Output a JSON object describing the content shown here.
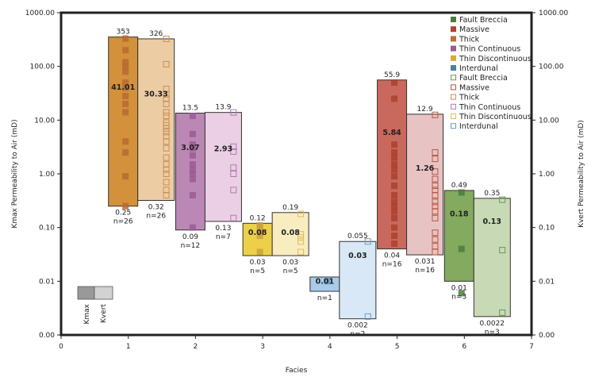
{
  "chart_data": {
    "type": "bar",
    "subtype": "floating-range-bar-log",
    "xlabel": "Facies",
    "ylabel_left": "Kmax Permeability to Air (mD)",
    "ylabel_right": "Kvert Permeability to Air (mD)",
    "x_ticks": [
      "0",
      "1",
      "2",
      "3",
      "4",
      "5",
      "6",
      "7"
    ],
    "xlim": [
      0,
      7
    ],
    "yscale": "log",
    "ylim": [
      0.001,
      1000
    ],
    "y_ticks": [
      {
        "value": 1000,
        "label": "1000.00"
      },
      {
        "value": 100,
        "label": "100.00"
      },
      {
        "value": 10,
        "label": "10.00"
      },
      {
        "value": 1,
        "label": "1.00"
      },
      {
        "value": 0.1,
        "label": "0.10"
      },
      {
        "value": 0.01,
        "label": "0.01"
      },
      {
        "value": 0.001,
        "label": "0.00"
      }
    ],
    "grid": false,
    "legend_position": "top-right",
    "legend": [
      {
        "label": "Fault Breccia",
        "style": "filled",
        "color": "#4e7d3a"
      },
      {
        "label": "Massive",
        "style": "filled",
        "color": "#a9432e"
      },
      {
        "label": "Thick",
        "style": "filled",
        "color": "#bd6f35"
      },
      {
        "label": "Thin Continuous",
        "style": "filled",
        "color": "#9a5b93"
      },
      {
        "label": "Thin Discontinuous",
        "style": "filled",
        "color": "#d6ab3a"
      },
      {
        "label": "Interdunal",
        "style": "filled",
        "color": "#4d7ea6"
      },
      {
        "label": "Fault Breccia",
        "style": "hollow",
        "color": "#6f9455"
      },
      {
        "label": "Massive",
        "style": "hollow",
        "color": "#b8563f"
      },
      {
        "label": "Thick",
        "style": "hollow",
        "color": "#c98c58"
      },
      {
        "label": "Thin Continuous",
        "style": "hollow",
        "color": "#b07bb0"
      },
      {
        "label": "Thin Discontinuous",
        "style": "hollow",
        "color": "#dcbf5e"
      },
      {
        "label": "Interdunal",
        "style": "hollow",
        "color": "#6f9cc4"
      }
    ],
    "key": {
      "kmax_label": "Kmax",
      "kvert_label": "Kvert",
      "kmax_color": "#999999",
      "kvert_color": "#d2d2d2"
    },
    "series": [
      {
        "facies": 1,
        "name": "Thick",
        "measure": "Kmax",
        "max": 353,
        "mean": 41.01,
        "min": 0.25,
        "n": 26,
        "max_label": "353",
        "mean_label": "41.01",
        "min_label": "0.25",
        "n_label": "n=26",
        "fill": "#d2913a",
        "marker": "#b86a33",
        "marker_style": "filled",
        "points": [
          330,
          200,
          120,
          100,
          80,
          50,
          40,
          28,
          20,
          14,
          4,
          2.5,
          0.9,
          0.25
        ]
      },
      {
        "facies": 1,
        "name": "Thick",
        "measure": "Kvert",
        "max": 326,
        "mean": 30.33,
        "min": 0.32,
        "n": 26,
        "max_label": "326",
        "mean_label": "30.33",
        "min_label": "0.32",
        "n_label": "n=26",
        "fill": "#eccda3",
        "marker": "#c98c58",
        "marker_style": "hollow",
        "points": [
          326,
          110,
          38,
          30,
          25,
          20,
          14,
          12,
          9,
          8,
          7,
          6,
          5,
          4,
          3,
          2,
          1.5,
          1.2,
          1.0,
          0.7,
          0.5,
          0.4
        ]
      },
      {
        "facies": 2,
        "name": "Thin Continuous",
        "measure": "Kmax",
        "max": 13.5,
        "mean": 3.07,
        "min": 0.09,
        "n": 12,
        "max_label": "13.5",
        "mean_label": "3.07",
        "min_label": "0.09",
        "n_label": "n=12",
        "fill": "#bb87b4",
        "marker": "#9a5b93",
        "marker_style": "filled",
        "points": [
          12,
          5.5,
          3.5,
          3,
          2.2,
          1.5,
          1.2,
          1,
          0.8,
          0.4,
          0.1
        ]
      },
      {
        "facies": 2,
        "name": "Thin Continuous",
        "measure": "Kvert",
        "max": 13.9,
        "mean": 2.93,
        "min": 0.13,
        "n": 7,
        "max_label": "13.9",
        "mean_label": "2.93",
        "min_label": "0.13",
        "n_label": "n=7",
        "fill": "#ebcfe4",
        "marker": "#b07bb0",
        "marker_style": "hollow",
        "points": [
          13.9,
          3.2,
          2.6,
          1.3,
          1.0,
          0.5,
          0.15
        ]
      },
      {
        "facies": 3,
        "name": "Thin Discontinuous",
        "measure": "Kmax",
        "max": 0.12,
        "mean": 0.08,
        "min": 0.03,
        "n": 5,
        "max_label": "0.12",
        "mean_label": "0.08",
        "min_label": "0.03",
        "n_label": "n=5",
        "fill": "#ecd04a",
        "marker": "#c9a040",
        "marker_style": "filled",
        "points": [
          0.11,
          0.1,
          0.08,
          0.07,
          0.035
        ]
      },
      {
        "facies": 3,
        "name": "Thin Discontinuous",
        "measure": "Kvert",
        "max": 0.19,
        "mean": 0.08,
        "min": 0.03,
        "n": 5,
        "max_label": "0.19",
        "mean_label": "0.08",
        "min_label": "0.03",
        "n_label": "n=5",
        "fill": "#f8ecc0",
        "marker": "#dcbf5e",
        "marker_style": "hollow",
        "points": [
          0.18,
          0.075,
          0.065,
          0.055,
          0.035
        ]
      },
      {
        "facies": 4,
        "name": "Interdunal",
        "measure": "Kmax",
        "max": 0.012,
        "mean": 0.01,
        "min": 0.0065,
        "n": 1,
        "max_label": "",
        "mean_label": "0.01",
        "min_label": "",
        "n_label": "n=1",
        "fill": "#a8cbea",
        "marker": "#6f9cc4",
        "marker_style": "filled",
        "points": [
          0.01
        ]
      },
      {
        "facies": 4,
        "name": "Interdunal",
        "measure": "Kvert",
        "max": 0.055,
        "mean": 0.03,
        "min": 0.002,
        "n": 2,
        "max_label": "0.055",
        "mean_label": "0.03",
        "min_label": "0.002",
        "n_label": "n=2",
        "fill": "#d8e8f7",
        "marker": "#6f9cc4",
        "marker_style": "hollow",
        "points": [
          0.055,
          0.0022
        ]
      },
      {
        "facies": 5,
        "name": "Massive",
        "measure": "Kmax",
        "max": 55.9,
        "mean": 5.84,
        "min": 0.04,
        "n": 16,
        "max_label": "55.9",
        "mean_label": "5.84",
        "min_label": "0.04",
        "n_label": "n=16",
        "fill": "#c9685c",
        "marker": "#a9432e",
        "marker_style": "filled",
        "points": [
          50,
          25,
          3.5,
          2.5,
          2,
          1.5,
          1.2,
          0.9,
          0.6,
          0.4,
          0.3,
          0.25,
          0.2,
          0.15,
          0.1,
          0.07,
          0.05
        ]
      },
      {
        "facies": 5,
        "name": "Massive",
        "measure": "Kvert",
        "max": 12.9,
        "mean": 1.26,
        "min": 0.031,
        "n": 16,
        "max_label": "12.9",
        "mean_label": "1.26",
        "min_label": "0.031",
        "n_label": "n=16",
        "fill": "#e8c3c3",
        "marker": "#b8563f",
        "marker_style": "hollow",
        "points": [
          12.5,
          2.5,
          1.9,
          1.1,
          0.8,
          0.6,
          0.5,
          0.4,
          0.3,
          0.25,
          0.2,
          0.15,
          0.08,
          0.06,
          0.045,
          0.035
        ]
      },
      {
        "facies": 6,
        "name": "Fault Breccia",
        "measure": "Kmax",
        "max": 0.49,
        "mean": 0.18,
        "min": 0.01,
        "n": 3,
        "max_label": "0.49",
        "mean_label": "0.18",
        "min_label": "0.01",
        "n_label": "n=3",
        "fill": "#83aa5e",
        "marker": "#4e7d3a",
        "marker_style": "filled",
        "points": [
          0.45,
          0.04,
          0.006
        ]
      },
      {
        "facies": 6,
        "name": "Fault Breccia",
        "measure": "Kvert",
        "max": 0.35,
        "mean": 0.13,
        "min": 0.0022,
        "n": 3,
        "max_label": "0.35",
        "mean_label": "0.13",
        "min_label": "0.0022",
        "n_label": "n=3",
        "fill": "#c8dab5",
        "marker": "#6f9455",
        "marker_style": "hollow",
        "points": [
          0.33,
          0.038,
          0.0026
        ]
      }
    ]
  }
}
